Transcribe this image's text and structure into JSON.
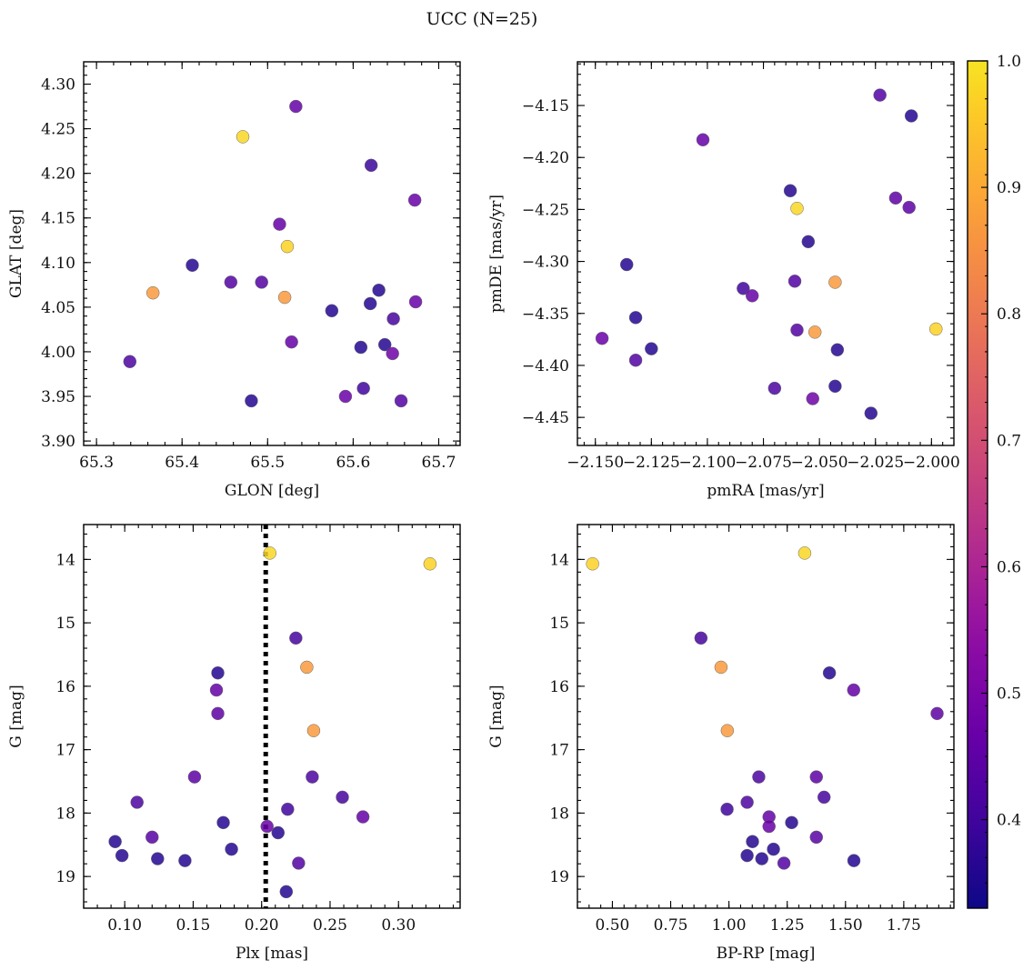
{
  "figure_title": "UCC (N=25)",
  "colorbar": {
    "range": [
      0.33,
      1.0
    ],
    "ticks": [
      0.4,
      0.5,
      0.6,
      0.7,
      0.8,
      0.9,
      1.0
    ],
    "tick_labels": [
      "0.4",
      "0.5",
      "0.6",
      "0.7",
      "0.8",
      "0.9",
      "1.0"
    ],
    "colormap": "plasma"
  },
  "chart_data": [
    {
      "type": "scatter",
      "id": "glon-glat",
      "xlabel": "GLON [deg]",
      "ylabel": "GLAT [deg]",
      "xlim": [
        65.285,
        65.725
      ],
      "ylim": [
        3.895,
        4.325
      ],
      "invert_y": false,
      "xticks": [
        65.3,
        65.4,
        65.5,
        65.6,
        65.7
      ],
      "xtick_labels": [
        "65.3",
        "65.4",
        "65.5",
        "65.6",
        "65.7"
      ],
      "yticks": [
        3.9,
        3.95,
        4.0,
        4.05,
        4.1,
        4.15,
        4.2,
        4.25,
        4.3
      ],
      "ytick_labels": [
        "3.90",
        "3.95",
        "4.00",
        "4.05",
        "4.10",
        "4.15",
        "4.20",
        "4.25",
        "4.30"
      ],
      "points": [
        {
          "x": 65.533,
          "y": 4.275,
          "c": 0.46
        },
        {
          "x": 65.471,
          "y": 4.241,
          "c": 0.98
        },
        {
          "x": 65.621,
          "y": 4.209,
          "c": 0.39
        },
        {
          "x": 65.672,
          "y": 4.17,
          "c": 0.47
        },
        {
          "x": 65.514,
          "y": 4.143,
          "c": 0.46
        },
        {
          "x": 65.523,
          "y": 4.118,
          "c": 0.97
        },
        {
          "x": 65.412,
          "y": 4.097,
          "c": 0.36
        },
        {
          "x": 65.457,
          "y": 4.078,
          "c": 0.43
        },
        {
          "x": 65.493,
          "y": 4.078,
          "c": 0.43
        },
        {
          "x": 65.63,
          "y": 4.069,
          "c": 0.36
        },
        {
          "x": 65.366,
          "y": 4.066,
          "c": 0.87
        },
        {
          "x": 65.52,
          "y": 4.061,
          "c": 0.87
        },
        {
          "x": 65.673,
          "y": 4.056,
          "c": 0.47
        },
        {
          "x": 65.62,
          "y": 4.054,
          "c": 0.36
        },
        {
          "x": 65.575,
          "y": 4.046,
          "c": 0.36
        },
        {
          "x": 65.647,
          "y": 4.037,
          "c": 0.41
        },
        {
          "x": 65.528,
          "y": 4.011,
          "c": 0.46
        },
        {
          "x": 65.637,
          "y": 4.008,
          "c": 0.36
        },
        {
          "x": 65.609,
          "y": 4.005,
          "c": 0.36
        },
        {
          "x": 65.646,
          "y": 3.998,
          "c": 0.48
        },
        {
          "x": 65.339,
          "y": 3.989,
          "c": 0.42
        },
        {
          "x": 65.612,
          "y": 3.959,
          "c": 0.4
        },
        {
          "x": 65.591,
          "y": 3.95,
          "c": 0.47
        },
        {
          "x": 65.481,
          "y": 3.945,
          "c": 0.36
        },
        {
          "x": 65.656,
          "y": 3.945,
          "c": 0.43
        }
      ]
    },
    {
      "type": "scatter",
      "id": "pmra-pmde",
      "xlabel": "pmRA [mas/yr]",
      "ylabel": "pmDE [mas/yr]",
      "xlim": [
        -2.158,
        -1.99
      ],
      "ylim": [
        -4.477,
        -4.108
      ],
      "invert_y": false,
      "xticks": [
        -2.15,
        -2.125,
        -2.1,
        -2.075,
        -2.05,
        -2.025,
        -2.0
      ],
      "xtick_labels": [
        "−2.150",
        "−2.125",
        "−2.100",
        "−2.075",
        "−2.050",
        "−2.025",
        "−2.000"
      ],
      "yticks": [
        -4.45,
        -4.4,
        -4.35,
        -4.3,
        -4.25,
        -4.2,
        -4.15
      ],
      "ytick_labels": [
        "−4.45",
        "−4.40",
        "−4.35",
        "−4.30",
        "−4.25",
        "−4.20",
        "−4.15"
      ],
      "points": [
        {
          "x": -2.023,
          "y": -4.14,
          "c": 0.43
        },
        {
          "x": -2.009,
          "y": -4.16,
          "c": 0.36
        },
        {
          "x": -2.102,
          "y": -4.183,
          "c": 0.46
        },
        {
          "x": -2.016,
          "y": -4.239,
          "c": 0.45
        },
        {
          "x": -2.01,
          "y": -4.248,
          "c": 0.45
        },
        {
          "x": -2.063,
          "y": -4.232,
          "c": 0.36
        },
        {
          "x": -2.06,
          "y": -4.249,
          "c": 0.98
        },
        {
          "x": -2.055,
          "y": -4.281,
          "c": 0.36
        },
        {
          "x": -2.136,
          "y": -4.303,
          "c": 0.36
        },
        {
          "x": -2.043,
          "y": -4.32,
          "c": 0.87
        },
        {
          "x": -2.061,
          "y": -4.319,
          "c": 0.43
        },
        {
          "x": -2.084,
          "y": -4.326,
          "c": 0.4
        },
        {
          "x": -2.08,
          "y": -4.333,
          "c": 0.46
        },
        {
          "x": -2.132,
          "y": -4.354,
          "c": 0.36
        },
        {
          "x": -1.998,
          "y": -4.365,
          "c": 0.97
        },
        {
          "x": -2.06,
          "y": -4.366,
          "c": 0.43
        },
        {
          "x": -2.052,
          "y": -4.368,
          "c": 0.87
        },
        {
          "x": -2.147,
          "y": -4.374,
          "c": 0.47
        },
        {
          "x": -2.125,
          "y": -4.384,
          "c": 0.36
        },
        {
          "x": -2.042,
          "y": -4.385,
          "c": 0.36
        },
        {
          "x": -2.132,
          "y": -4.395,
          "c": 0.43
        },
        {
          "x": -2.043,
          "y": -4.42,
          "c": 0.36
        },
        {
          "x": -2.07,
          "y": -4.422,
          "c": 0.42
        },
        {
          "x": -2.053,
          "y": -4.432,
          "c": 0.48
        },
        {
          "x": -2.027,
          "y": -4.446,
          "c": 0.36
        }
      ]
    },
    {
      "type": "scatter",
      "id": "plx-g",
      "xlabel": "Plx [mas]",
      "ylabel": "G [mag]",
      "xlim": [
        0.07,
        0.345
      ],
      "ylim": [
        13.45,
        19.5
      ],
      "invert_y": true,
      "vline": {
        "x": 0.203,
        "style": "dotted"
      },
      "xticks": [
        0.1,
        0.15,
        0.2,
        0.25,
        0.3
      ],
      "xtick_labels": [
        "0.10",
        "0.15",
        "0.20",
        "0.25",
        "0.30"
      ],
      "yticks": [
        14,
        15,
        16,
        17,
        18,
        19
      ],
      "ytick_labels": [
        "14",
        "15",
        "16",
        "17",
        "18",
        "19"
      ],
      "points": [
        {
          "x": 0.206,
          "y": 13.9,
          "c": 0.98
        },
        {
          "x": 0.323,
          "y": 14.07,
          "c": 0.97
        },
        {
          "x": 0.225,
          "y": 15.24,
          "c": 0.41
        },
        {
          "x": 0.233,
          "y": 15.7,
          "c": 0.87
        },
        {
          "x": 0.168,
          "y": 15.79,
          "c": 0.36
        },
        {
          "x": 0.167,
          "y": 16.06,
          "c": 0.46
        },
        {
          "x": 0.168,
          "y": 16.43,
          "c": 0.45
        },
        {
          "x": 0.238,
          "y": 16.7,
          "c": 0.87
        },
        {
          "x": 0.151,
          "y": 17.43,
          "c": 0.45
        },
        {
          "x": 0.237,
          "y": 17.43,
          "c": 0.42
        },
        {
          "x": 0.259,
          "y": 17.75,
          "c": 0.41
        },
        {
          "x": 0.109,
          "y": 17.83,
          "c": 0.42
        },
        {
          "x": 0.219,
          "y": 17.94,
          "c": 0.4
        },
        {
          "x": 0.274,
          "y": 18.06,
          "c": 0.46
        },
        {
          "x": 0.172,
          "y": 18.15,
          "c": 0.36
        },
        {
          "x": 0.204,
          "y": 18.21,
          "c": 0.47
        },
        {
          "x": 0.212,
          "y": 18.31,
          "c": 0.36
        },
        {
          "x": 0.12,
          "y": 18.38,
          "c": 0.44
        },
        {
          "x": 0.093,
          "y": 18.45,
          "c": 0.36
        },
        {
          "x": 0.178,
          "y": 18.57,
          "c": 0.36
        },
        {
          "x": 0.098,
          "y": 18.67,
          "c": 0.36
        },
        {
          "x": 0.124,
          "y": 18.72,
          "c": 0.36
        },
        {
          "x": 0.144,
          "y": 18.75,
          "c": 0.36
        },
        {
          "x": 0.227,
          "y": 18.79,
          "c": 0.43
        },
        {
          "x": 0.218,
          "y": 19.24,
          "c": 0.36
        }
      ]
    },
    {
      "type": "scatter",
      "id": "bprp-g",
      "xlabel": "BP-RP [mag]",
      "ylabel": "G [mag]",
      "xlim": [
        0.35,
        1.965
      ],
      "ylim": [
        13.45,
        19.5
      ],
      "invert_y": true,
      "xticks": [
        0.5,
        0.75,
        1.0,
        1.25,
        1.5,
        1.75
      ],
      "xtick_labels": [
        "0.50",
        "0.75",
        "1.00",
        "1.25",
        "1.50",
        "1.75"
      ],
      "yticks": [
        14,
        15,
        16,
        17,
        18,
        19
      ],
      "ytick_labels": [
        "14",
        "15",
        "16",
        "17",
        "18",
        "19"
      ],
      "points": [
        {
          "x": 1.325,
          "y": 13.9,
          "c": 0.98
        },
        {
          "x": 0.415,
          "y": 14.07,
          "c": 0.97
        },
        {
          "x": 0.88,
          "y": 15.24,
          "c": 0.41
        },
        {
          "x": 0.966,
          "y": 15.7,
          "c": 0.87
        },
        {
          "x": 1.431,
          "y": 15.79,
          "c": 0.36
        },
        {
          "x": 1.535,
          "y": 16.06,
          "c": 0.46
        },
        {
          "x": 1.893,
          "y": 16.43,
          "c": 0.45
        },
        {
          "x": 0.993,
          "y": 16.7,
          "c": 0.87
        },
        {
          "x": 1.128,
          "y": 17.43,
          "c": 0.42
        },
        {
          "x": 1.375,
          "y": 17.43,
          "c": 0.45
        },
        {
          "x": 1.408,
          "y": 17.75,
          "c": 0.41
        },
        {
          "x": 1.078,
          "y": 17.83,
          "c": 0.42
        },
        {
          "x": 0.992,
          "y": 17.94,
          "c": 0.4
        },
        {
          "x": 1.172,
          "y": 18.06,
          "c": 0.46
        },
        {
          "x": 1.269,
          "y": 18.15,
          "c": 0.36
        },
        {
          "x": 1.172,
          "y": 18.21,
          "c": 0.47
        },
        {
          "x": 1.375,
          "y": 18.38,
          "c": 0.44
        },
        {
          "x": 1.101,
          "y": 18.45,
          "c": 0.36
        },
        {
          "x": 1.191,
          "y": 18.57,
          "c": 0.36
        },
        {
          "x": 1.078,
          "y": 18.67,
          "c": 0.36
        },
        {
          "x": 1.141,
          "y": 18.72,
          "c": 0.36
        },
        {
          "x": 1.536,
          "y": 18.75,
          "c": 0.36
        },
        {
          "x": 1.236,
          "y": 18.79,
          "c": 0.43
        }
      ]
    }
  ]
}
